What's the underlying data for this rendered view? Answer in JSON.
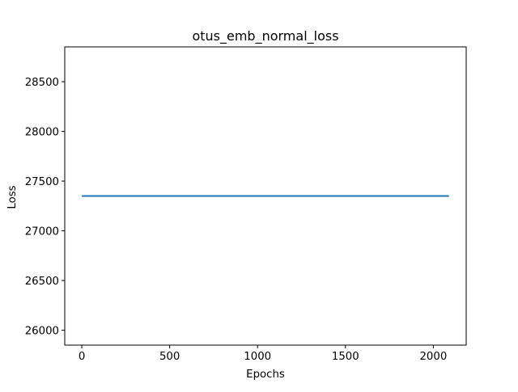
{
  "chart_data": {
    "type": "line",
    "title": "otus_emb_normal_loss",
    "xlabel": "Epochs",
    "ylabel": "Loss",
    "xlim": [
      -97,
      2187
    ],
    "ylim": [
      25850,
      28850
    ],
    "xticks": [
      0,
      500,
      1000,
      1500,
      2000
    ],
    "xtick_labels": [
      "0",
      "500",
      "1000",
      "1500",
      "2000"
    ],
    "yticks": [
      26000,
      26500,
      27000,
      27500,
      28000,
      28500
    ],
    "ytick_labels": [
      "26000",
      "26500",
      "27000",
      "27500",
      "28000",
      "28500"
    ],
    "grid": false,
    "series": [
      {
        "color": "#1f77b4",
        "x": [
          0,
          2089
        ],
        "y": [
          27350,
          27350
        ]
      }
    ]
  }
}
